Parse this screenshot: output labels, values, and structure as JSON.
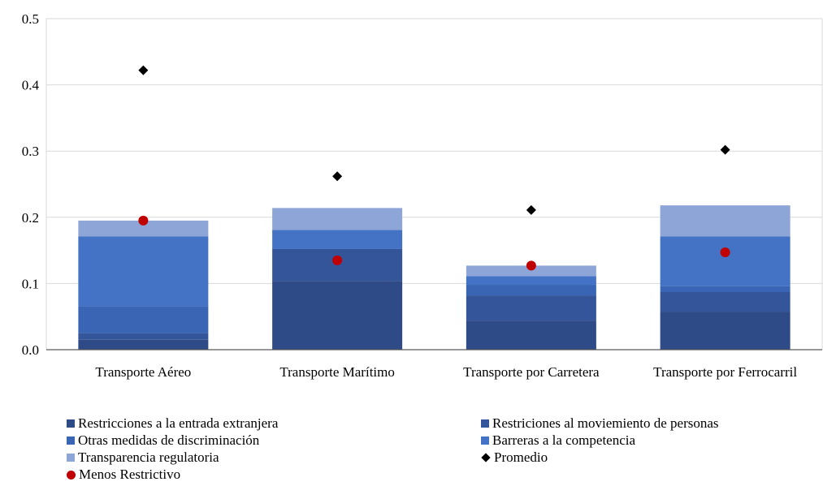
{
  "chart_data": {
    "type": "bar",
    "stacked": true,
    "categories": [
      "Transporte Aéreo",
      "Transporte Marítimo",
      "Transporte por Carretera",
      "Transporte por Ferrocarril"
    ],
    "ylim": [
      0,
      0.5
    ],
    "yticks": [
      "0.0",
      "0.1",
      "0.2",
      "0.3",
      "0.4",
      "0.5"
    ],
    "grid": true,
    "legend_position": "bottom",
    "series": [
      {
        "name": "Restricciones a la entrada extranjera",
        "color": "#2f4b87",
        "values": [
          0.015,
          0.104,
          0.044,
          0.057
        ]
      },
      {
        "name": "Restriciones al moviemiento de personas",
        "color": "#35559a",
        "values": [
          0.01,
          0.048,
          0.038,
          0.03
        ]
      },
      {
        "name": "Otras medidas de discriminación",
        "color": "#3a65b4",
        "values": [
          0.041,
          0.0,
          0.016,
          0.009
        ]
      },
      {
        "name": "Barreras a la competencia",
        "color": "#4472c4",
        "values": [
          0.105,
          0.029,
          0.013,
          0.075
        ]
      },
      {
        "name": "Transparencia regulatoria",
        "color": "#8ea5d8",
        "values": [
          0.024,
          0.033,
          0.016,
          0.047
        ]
      }
    ],
    "markers": [
      {
        "name": "Promedio",
        "shape": "diamond",
        "color": "#000000",
        "values": [
          0.422,
          0.262,
          0.211,
          0.302
        ]
      },
      {
        "name": "Menos Restrictivo",
        "shape": "circle",
        "color": "#c00000",
        "values": [
          0.195,
          0.135,
          0.127,
          0.147
        ]
      }
    ]
  }
}
